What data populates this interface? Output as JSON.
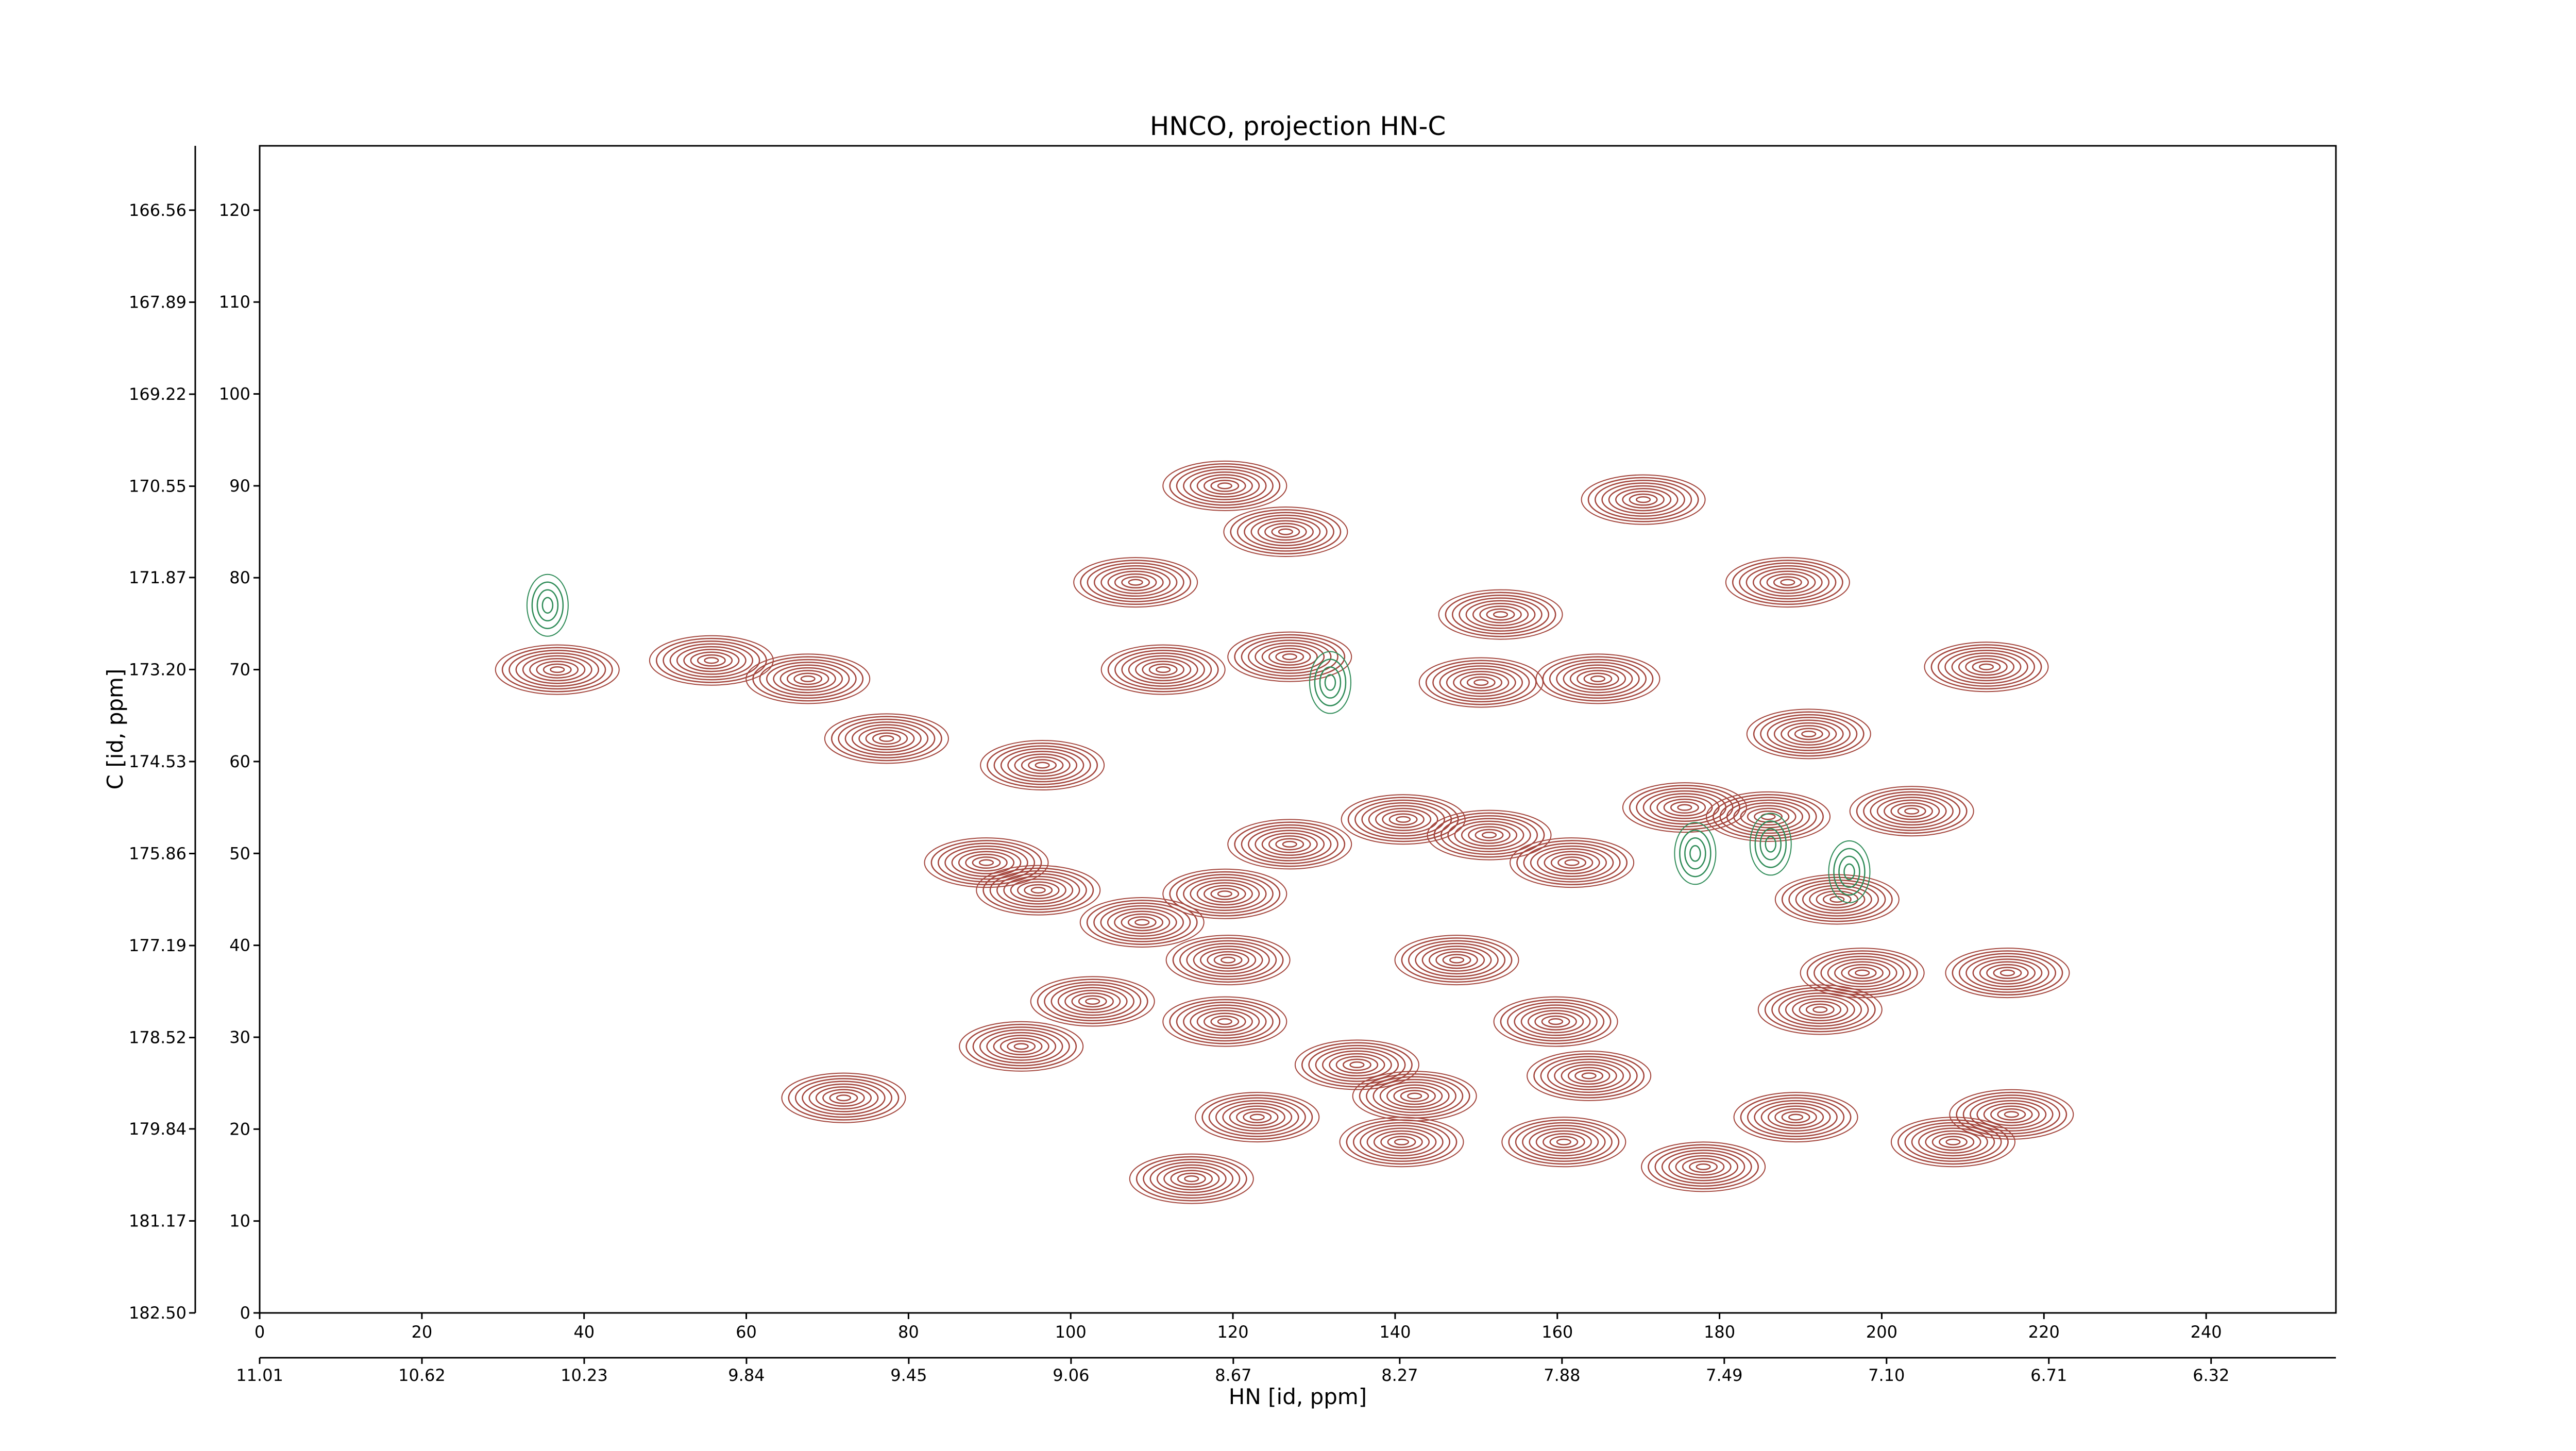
{
  "chart_data": {
    "type": "contour",
    "title": "HNCO, projection HN-C",
    "xlabel": "HN [id, ppm]",
    "ylabel": "C [id, ppm]",
    "xlim": [
      0,
      256
    ],
    "xticks": [
      0,
      20,
      40,
      60,
      80,
      100,
      120,
      140,
      160,
      180,
      200,
      220,
      240
    ],
    "x2lim": [
      11.01,
      6.02
    ],
    "x2ticks": [
      11.01,
      10.62,
      10.23,
      9.84,
      9.45,
      9.06,
      8.67,
      8.27,
      7.88,
      7.49,
      {
        "value": 7.1,
        "label": "7.10"
      },
      6.71,
      6.32
    ],
    "ylim": [
      0,
      127
    ],
    "yticks": [
      0,
      10,
      20,
      30,
      40,
      50,
      60,
      70,
      80,
      90,
      100,
      110,
      120
    ],
    "y2lim": [
      182.5,
      165.63
    ],
    "y2ticks": [
      {
        "value": 182.5,
        "label": "182.50"
      },
      181.17,
      179.84,
      178.52,
      177.19,
      175.86,
      174.53,
      {
        "value": 173.2,
        "label": "173.20"
      },
      171.87,
      170.55,
      169.22,
      167.89,
      166.56
    ],
    "series": [
      {
        "color": "#a3453c",
        "x": [
          36.7,
          55.7,
          67.6,
          77.3,
          119,
          126.5,
          108,
          170.6,
          188.4,
          153,
          111.4,
          127,
          150.6,
          165,
          212.9,
          96.5,
          191,
          89.6,
          96,
          108.8,
          119,
          127,
          141,
          151.6,
          161.8,
          175.7,
          186,
          203.7,
          194.5,
          215.5,
          197.6,
          192.4,
          119.4,
          147.6,
          102.7,
          93.9,
          119,
          159.8,
          135.3,
          163.9,
          72,
          142.4,
          123,
          140.8,
          160.8,
          178,
          189.4,
          208.8,
          216,
          114.9
        ],
        "y": [
          70,
          71,
          69,
          62.5,
          90,
          85,
          79.5,
          88.5,
          79.5,
          76,
          70,
          71.4,
          68.6,
          69,
          70.3,
          59.6,
          63,
          49,
          46,
          42.5,
          45.6,
          51,
          53.7,
          52,
          49,
          55,
          54,
          54.6,
          45,
          37,
          37,
          33,
          38.4,
          38.4,
          33.9,
          29,
          31.7,
          31.7,
          27,
          25.8,
          23.4,
          23.6,
          21.3,
          18.6,
          18.6,
          15.9,
          21.3,
          18.6,
          21.6,
          14.6
        ]
      },
      {
        "color": "#2e8b57",
        "x": [
          132,
          186.3,
          177,
          35.5,
          196
        ],
        "y": [
          68.6,
          51,
          50,
          77,
          48
        ]
      }
    ]
  }
}
